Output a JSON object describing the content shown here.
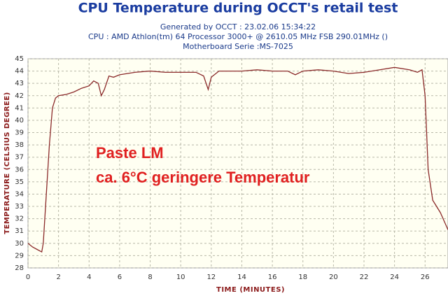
{
  "chart_data": {
    "type": "line",
    "title": "CPU Temperature during OCCT's retail test",
    "subtitle": [
      "Generated by OCCT : 23.02.06 15:34:22",
      "CPU : AMD Athlon(tm) 64 Processor 3000+ @ 2610.05 MHz FSB 290.01MHz ()",
      "Motherboard Serie :MS-7025"
    ],
    "x_label": "TIME (MINUTES)",
    "y_label": "TEMPERATURE (CELSIUS DEGREE)",
    "annotations": [
      "Paste LM",
      "ca. 6°C geringere Temperatur"
    ],
    "x": [
      0,
      0.3,
      0.6,
      0.9,
      1.0,
      1.2,
      1.4,
      1.6,
      1.8,
      2.0,
      2.5,
      3.0,
      3.5,
      4.0,
      4.3,
      4.6,
      4.8,
      5.0,
      5.3,
      5.6,
      6,
      7,
      8,
      9,
      10,
      11,
      11.5,
      11.8,
      12.0,
      12.5,
      13,
      14,
      15,
      16,
      17,
      17.5,
      18,
      19,
      20,
      21,
      22,
      23,
      24,
      25,
      25.5,
      25.8,
      26.0,
      26.2,
      26.5,
      27,
      27.5
    ],
    "values": [
      30.0,
      29.7,
      29.5,
      29.3,
      30,
      34,
      38,
      41,
      41.8,
      42.0,
      42.1,
      42.3,
      42.6,
      42.8,
      43.2,
      43.0,
      42.0,
      42.5,
      43.6,
      43.5,
      43.7,
      43.9,
      44.0,
      43.9,
      43.9,
      43.9,
      43.6,
      42.5,
      43.5,
      44.0,
      44.0,
      44.0,
      44.1,
      44.0,
      44.0,
      43.7,
      44.0,
      44.1,
      44.0,
      43.8,
      43.9,
      44.1,
      44.3,
      44.1,
      43.9,
      44.1,
      42,
      36,
      33.5,
      32.5,
      31.1
    ],
    "color": "#8b2a2a",
    "xlim": [
      0,
      27.5
    ],
    "ylim": [
      28,
      45
    ],
    "xticks": [
      0,
      2,
      4,
      6,
      8,
      10,
      12,
      14,
      16,
      18,
      20,
      22,
      24,
      26
    ],
    "yticks": [
      28,
      29,
      30,
      31,
      32,
      33,
      34,
      35,
      36,
      37,
      38,
      39,
      40,
      41,
      42,
      43,
      44,
      45
    ],
    "grid": true
  }
}
